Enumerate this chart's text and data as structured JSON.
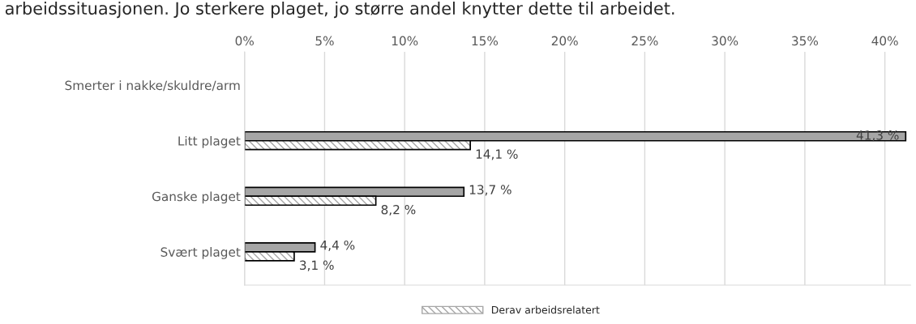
{
  "chart_data": {
    "type": "bar",
    "orientation": "horizontal",
    "title": "arbeidssituasjonen. Jo sterkere plaget, jo større andel knytter dette til arbeidet.",
    "categories": [
      "Smerter i nakke/skuldre/arm",
      "Litt plaget",
      "Ganske plaget",
      "Svært plaget"
    ],
    "series": [
      {
        "color": "#a6a6a6",
        "values": [
          null,
          41.3,
          13.7,
          4.4
        ],
        "value_labels": [
          null,
          "41,3 %",
          "13,7 %",
          "4,4 %"
        ]
      },
      {
        "name": "Derav arbeidsrelatert",
        "color": "#a6a6a6",
        "values": [
          null,
          14.1,
          8.2,
          3.1
        ],
        "value_labels": [
          null,
          "14,1 %",
          "8,2 %",
          "3,1 %"
        ]
      }
    ],
    "xlim": [
      0,
      41.6
    ],
    "xticks": [
      {
        "value": 0,
        "label": "0%"
      },
      {
        "value": 5,
        "label": "5%"
      },
      {
        "value": 10,
        "label": "10%"
      },
      {
        "value": 15,
        "label": "15%"
      },
      {
        "value": 20,
        "label": "20%"
      },
      {
        "value": 25,
        "label": "25%"
      },
      {
        "value": 30,
        "label": "30%"
      },
      {
        "value": 35,
        "label": "35%"
      },
      {
        "value": 40,
        "label": "40%"
      }
    ],
    "grid": "x",
    "legend": "bottom"
  }
}
